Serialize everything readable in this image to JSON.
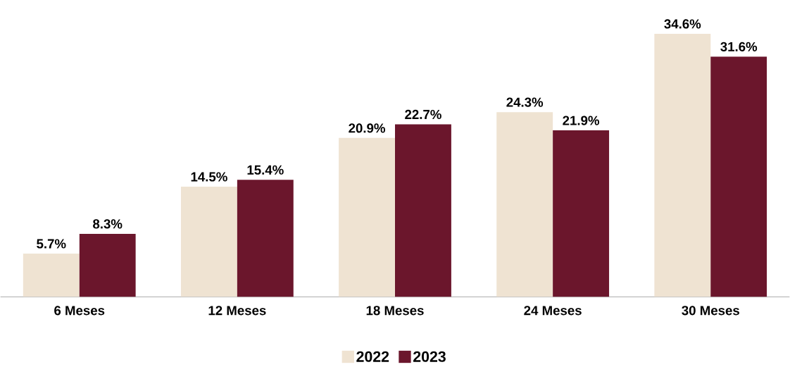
{
  "chart_data": {
    "type": "bar",
    "categories": [
      "6 Meses",
      "12 Meses",
      "18 Meses",
      "24 Meses",
      "30 Meses"
    ],
    "series": [
      {
        "name": "2022",
        "color": "#efe3d2",
        "values": [
          5.7,
          14.5,
          20.9,
          24.3,
          34.6
        ],
        "value_labels": [
          "5.7%",
          "14.5%",
          "20.9%",
          "24.3%",
          "34.6%"
        ]
      },
      {
        "name": "2023",
        "color": "#6b162c",
        "values": [
          8.3,
          15.4,
          22.7,
          21.9,
          31.6
        ],
        "value_labels": [
          "8.3%",
          "15.4%",
          "22.7%",
          "21.9%",
          "31.6%"
        ]
      }
    ],
    "legend": "bottom"
  }
}
